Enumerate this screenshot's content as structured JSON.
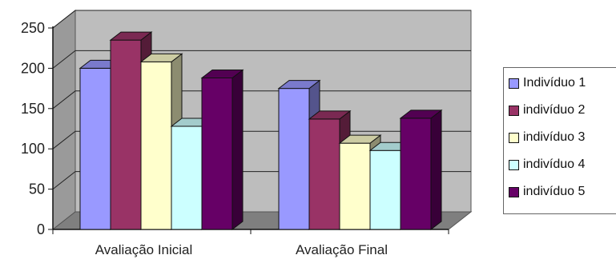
{
  "chart_data": {
    "type": "bar",
    "categories": [
      "Avaliação Inicial",
      "Avaliação Final"
    ],
    "series": [
      {
        "name": "Indivíduo 1",
        "color": "#9999FF",
        "values": [
          200,
          175
        ]
      },
      {
        "name": "indivíduo 2",
        "color": "#993366",
        "values": [
          235,
          137
        ]
      },
      {
        "name": "indivíduo 3",
        "color": "#FFFFCC",
        "values": [
          208,
          107
        ]
      },
      {
        "name": "indivíduo 4",
        "color": "#CCFFFF",
        "values": [
          128,
          98
        ]
      },
      {
        "name": "indivíduo 5",
        "color": "#660066",
        "values": [
          188,
          138
        ]
      }
    ],
    "ylim": [
      0,
      250
    ],
    "yticks": [
      0,
      50,
      100,
      150,
      200,
      250
    ],
    "grid": true,
    "legend_position": "right",
    "title": "",
    "xlabel": "",
    "ylabel": ""
  }
}
